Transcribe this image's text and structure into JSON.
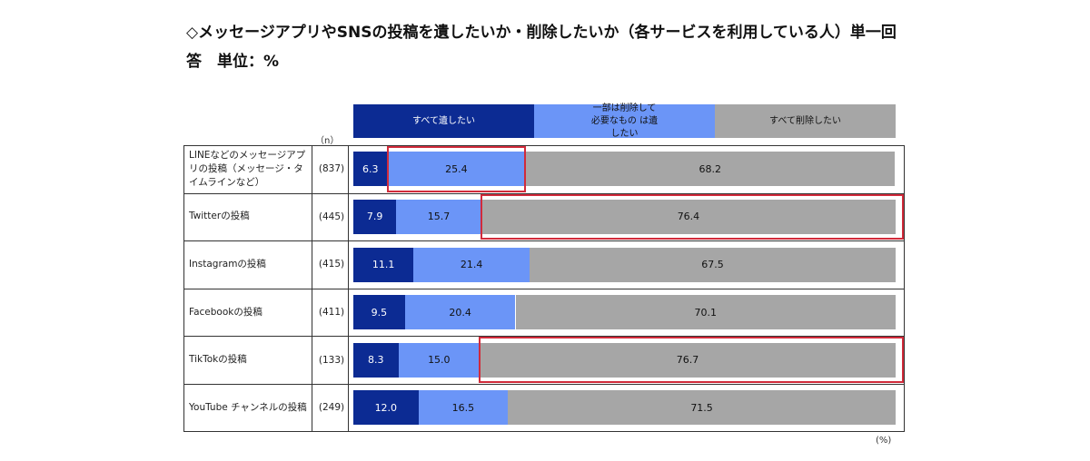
{
  "title_line1": "◇メッセージアプリやSNSの投稿を遺したいか・削除したいか（各サービスを利用している人）単一回",
  "title_line2": "答　単位：%",
  "n_header": "（n）",
  "unit_label": "(%)",
  "colors": {
    "keep_all": "#0c2b93",
    "keep_some": "#6b95f7",
    "delete_all": "#a6a6a6",
    "highlight": "#d12b3b"
  },
  "legend": [
    {
      "label": "すべて遺したい",
      "color": "#0c2b93",
      "text_color": "#ffffff"
    },
    {
      "label": "一部は削除して必要なもの は遺したい",
      "color": "#6b95f7",
      "text_color": "#111111"
    },
    {
      "label": "すべて削除したい",
      "color": "#a6a6a6",
      "text_color": "#111111"
    }
  ],
  "chart_data": {
    "type": "bar",
    "orientation": "horizontal",
    "stacked": "100%",
    "categories": [
      "LINEなどのメッセージアプリの投稿（メッセージ・タイムラインなど）",
      "Twitterの投稿",
      "Instagramの投稿",
      "Facebookの投稿",
      "TikTokの投稿",
      "YouTube チャンネルの投稿"
    ],
    "n": [
      "(837)",
      "(445)",
      "(415)",
      "(411)",
      "(133)",
      "(249)"
    ],
    "series": [
      {
        "name": "すべて遺したい",
        "values": [
          6.3,
          7.9,
          11.1,
          9.5,
          8.3,
          12.0
        ]
      },
      {
        "name": "一部は削除して必要なもの は遺したい",
        "values": [
          25.4,
          15.7,
          21.4,
          20.4,
          15.0,
          16.5
        ]
      },
      {
        "name": "すべて削除したい",
        "values": [
          68.2,
          76.4,
          67.5,
          70.1,
          76.7,
          71.5
        ]
      }
    ],
    "xlim": [
      0,
      100
    ],
    "highlights": [
      {
        "row": 0,
        "series": 1
      },
      {
        "row": 1,
        "series": 2
      },
      {
        "row": 4,
        "series": 2
      }
    ]
  }
}
